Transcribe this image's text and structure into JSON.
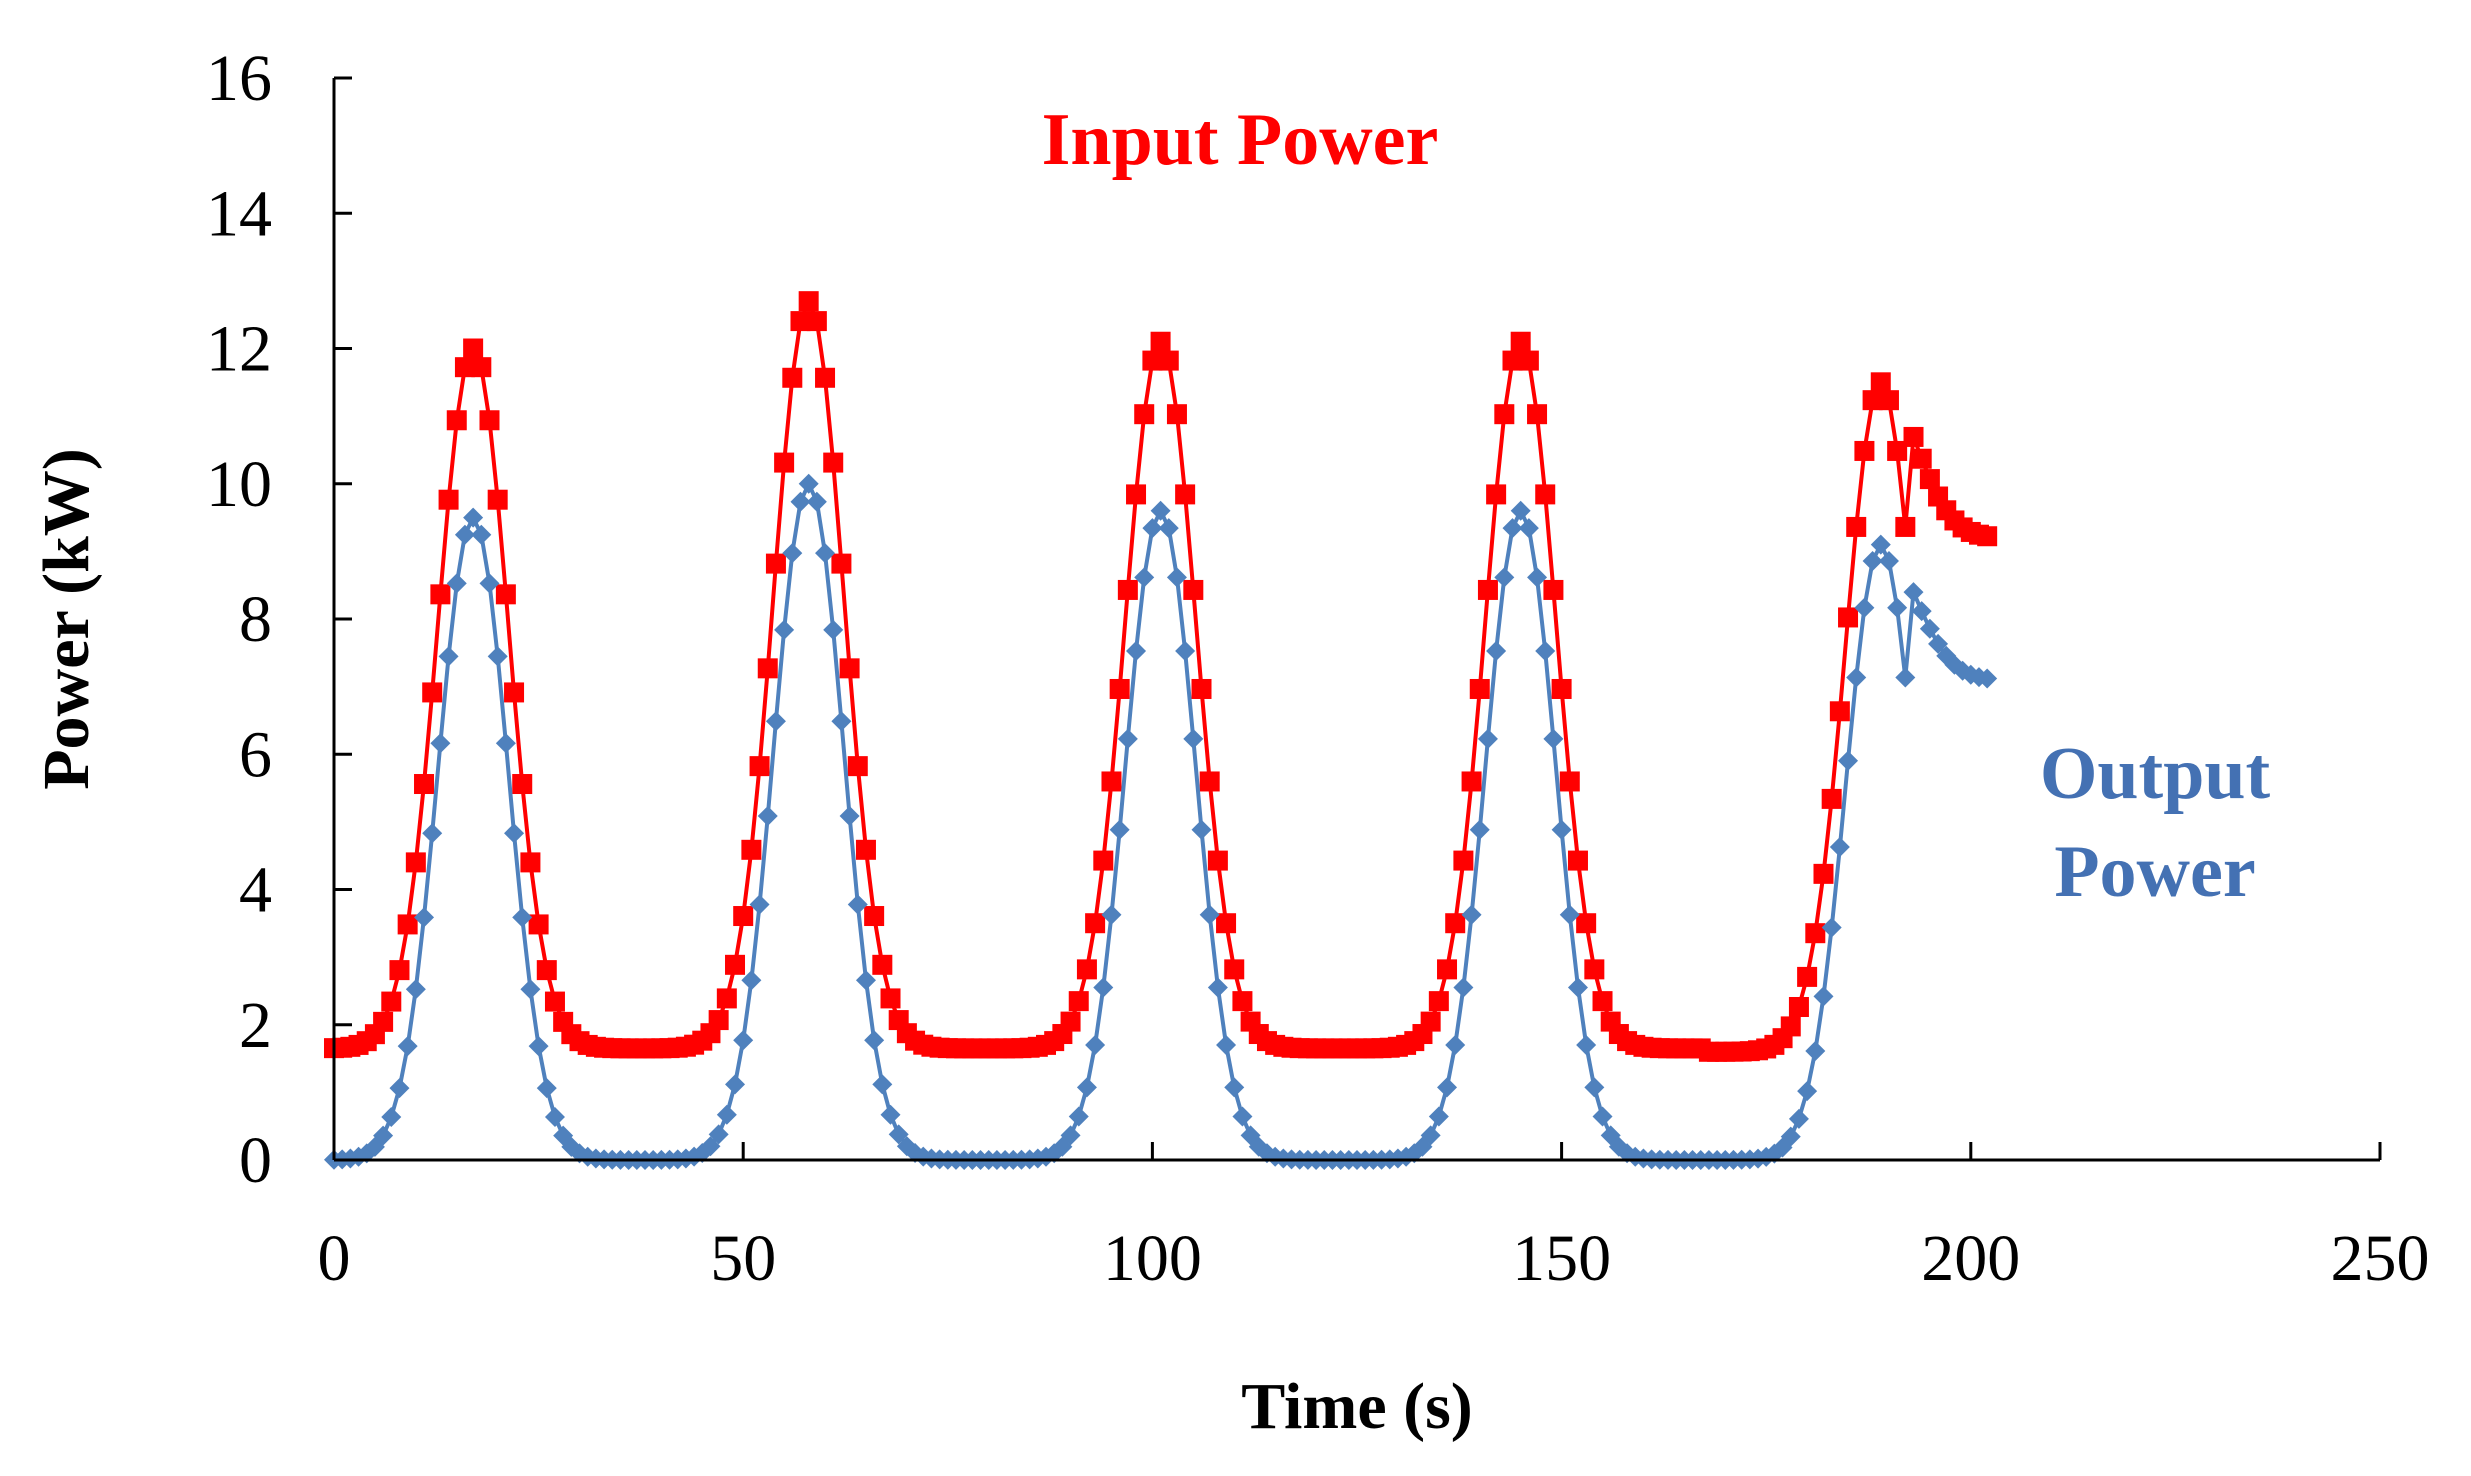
{
  "chart_data": {
    "type": "line",
    "title": "",
    "xlabel": "Time (s)",
    "ylabel": "Power (kW)",
    "xlim": [
      0,
      250
    ],
    "ylim": [
      0,
      16
    ],
    "x_ticks": [
      0,
      50,
      100,
      150,
      200,
      250
    ],
    "y_ticks": [
      0,
      2,
      4,
      6,
      8,
      10,
      12,
      14,
      16
    ],
    "x_tick_labels": [
      "0",
      "50",
      "100",
      "150",
      "200",
      "250"
    ],
    "y_tick_labels": [
      "0",
      "2",
      "4",
      "6",
      "8",
      "10",
      "12",
      "14",
      "16"
    ],
    "grid": false,
    "legend": "inline labels",
    "peak_centers": [
      17,
      58,
      101,
      145,
      189
    ],
    "series": [
      {
        "name": "Input Power",
        "label_lines": [
          "Input Power"
        ],
        "color": "#ff0000",
        "marker": "square",
        "baseline": [
          1.65,
          1.65,
          1.65,
          1.65,
          1.6
        ],
        "peaks": [
          12.0,
          12.7,
          12.1,
          12.1,
          11.5
        ],
        "end_value": 9.2,
        "x_start": 0,
        "x_end": 202,
        "x_step": 1
      },
      {
        "name": "Output Power",
        "label_lines": [
          "Output",
          "Power"
        ],
        "color": "#4f81bd",
        "marker": "diamond",
        "baseline": [
          0,
          0,
          0,
          0,
          0
        ],
        "peaks": [
          9.5,
          10.0,
          9.6,
          9.6,
          9.1
        ],
        "end_value": 7.1,
        "x_start": 0,
        "x_end": 202,
        "x_step": 1
      }
    ]
  }
}
